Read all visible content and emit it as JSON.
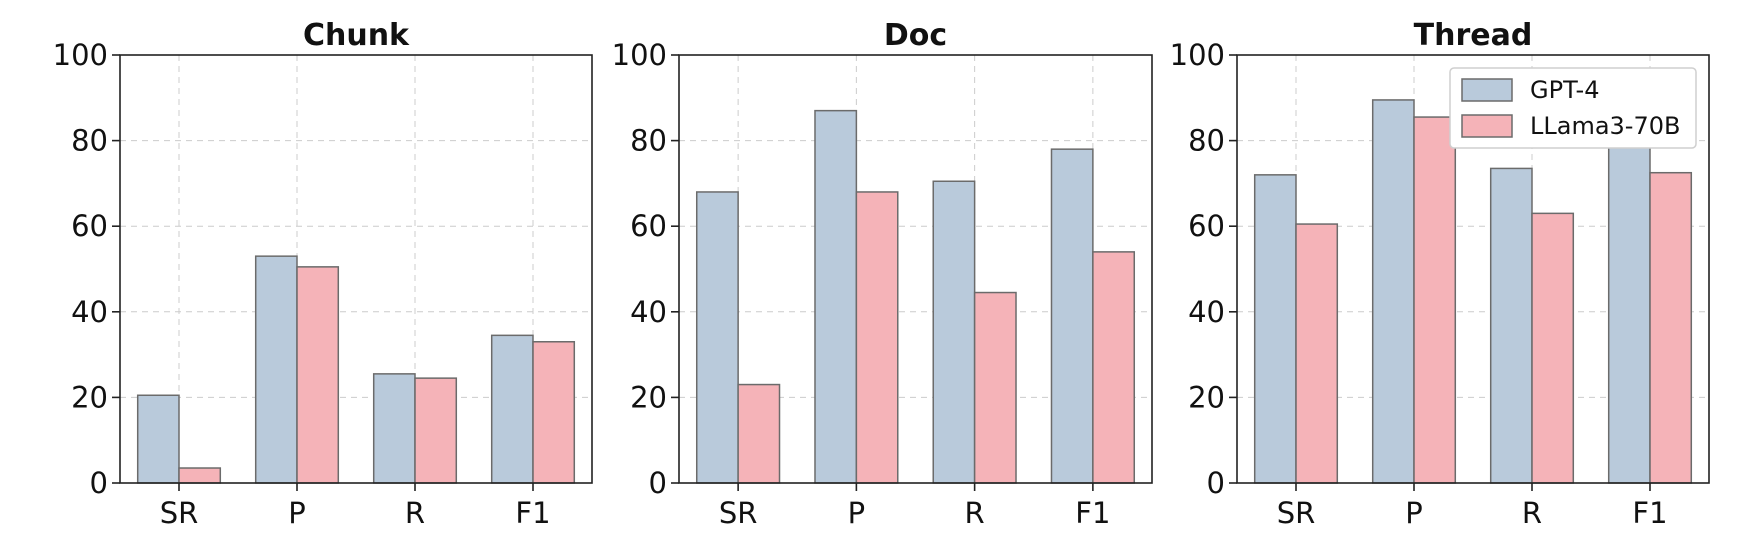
{
  "chart_data": [
    {
      "type": "bar",
      "title": "Chunk",
      "categories": [
        "SR",
        "P",
        "R",
        "F1"
      ],
      "series": [
        {
          "name": "GPT-4",
          "values": [
            20.5,
            53.0,
            25.5,
            34.5
          ]
        },
        {
          "name": "LLama3-70B",
          "values": [
            3.5,
            50.5,
            24.5,
            33.0
          ]
        }
      ],
      "ylim": [
        0,
        100
      ],
      "yticks": [
        "0",
        "20",
        "40",
        "60",
        "80",
        "100"
      ],
      "grid": true
    },
    {
      "type": "bar",
      "title": "Doc",
      "categories": [
        "SR",
        "P",
        "R",
        "F1"
      ],
      "series": [
        {
          "name": "GPT-4",
          "values": [
            68.0,
            87.0,
            70.5,
            78.0
          ]
        },
        {
          "name": "LLama3-70B",
          "values": [
            23.0,
            68.0,
            44.5,
            54.0
          ]
        }
      ],
      "ylim": [
        0,
        100
      ],
      "yticks": [
        "0",
        "20",
        "40",
        "60",
        "80",
        "100"
      ],
      "grid": true
    },
    {
      "type": "bar",
      "title": "Thread",
      "categories": [
        "SR",
        "P",
        "R",
        "F1"
      ],
      "series": [
        {
          "name": "GPT-4",
          "values": [
            72.0,
            89.5,
            73.5,
            83.5
          ]
        },
        {
          "name": "LLama3-70B",
          "values": [
            60.5,
            85.5,
            63.0,
            72.5
          ]
        }
      ],
      "ylim": [
        0,
        100
      ],
      "yticks": [
        "0",
        "20",
        "40",
        "60",
        "80",
        "100"
      ],
      "grid": true
    }
  ],
  "legend": {
    "placement": "top-right",
    "entries": [
      {
        "label": "GPT-4",
        "color": "#b9cadb"
      },
      {
        "label": "LLama3-70B",
        "color": "#f5b3b8"
      }
    ]
  },
  "colors": {
    "series": [
      "#b9cadb",
      "#f5b3b8"
    ],
    "bar_edge": "#6b6b6b",
    "grid": "#cccccc"
  }
}
